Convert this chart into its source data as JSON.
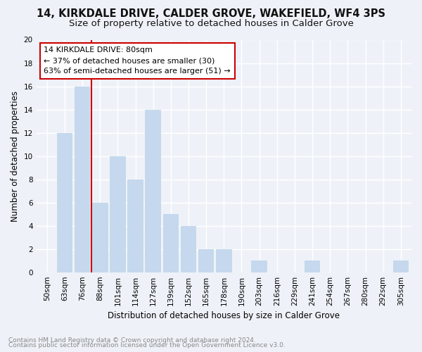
{
  "title1": "14, KIRKDALE DRIVE, CALDER GROVE, WAKEFIELD, WF4 3PS",
  "title2": "Size of property relative to detached houses in Calder Grove",
  "xlabel": "Distribution of detached houses by size in Calder Grove",
  "ylabel": "Number of detached properties",
  "footnote1": "Contains HM Land Registry data © Crown copyright and database right 2024.",
  "footnote2": "Contains public sector information licensed under the Open Government Licence v3.0.",
  "annotation_line1": "14 KIRKDALE DRIVE: 80sqm",
  "annotation_line2": "← 37% of detached houses are smaller (30)",
  "annotation_line3": "63% of semi-detached houses are larger (51) →",
  "categories": [
    "50sqm",
    "63sqm",
    "76sqm",
    "88sqm",
    "101sqm",
    "114sqm",
    "127sqm",
    "139sqm",
    "152sqm",
    "165sqm",
    "178sqm",
    "190sqm",
    "203sqm",
    "216sqm",
    "229sqm",
    "241sqm",
    "254sqm",
    "267sqm",
    "280sqm",
    "292sqm",
    "305sqm"
  ],
  "values": [
    0,
    12,
    16,
    6,
    10,
    8,
    14,
    5,
    4,
    2,
    2,
    0,
    1,
    0,
    0,
    1,
    0,
    0,
    0,
    0,
    1
  ],
  "bar_color": "#c5d8ed",
  "annotation_box_color": "#cc0000",
  "annotation_fill": "#ffffff",
  "vline_color": "#cc0000",
  "vline_index": 2.5,
  "ylim": [
    0,
    20
  ],
  "yticks": [
    0,
    2,
    4,
    6,
    8,
    10,
    12,
    14,
    16,
    18,
    20
  ],
  "background_color": "#eef2f8",
  "grid_color": "#ffffff",
  "title_fontsize": 10.5,
  "subtitle_fontsize": 9.5,
  "axis_label_fontsize": 8.5,
  "tick_fontsize": 7.5,
  "annotation_fontsize": 8,
  "footnote_fontsize": 6.5
}
